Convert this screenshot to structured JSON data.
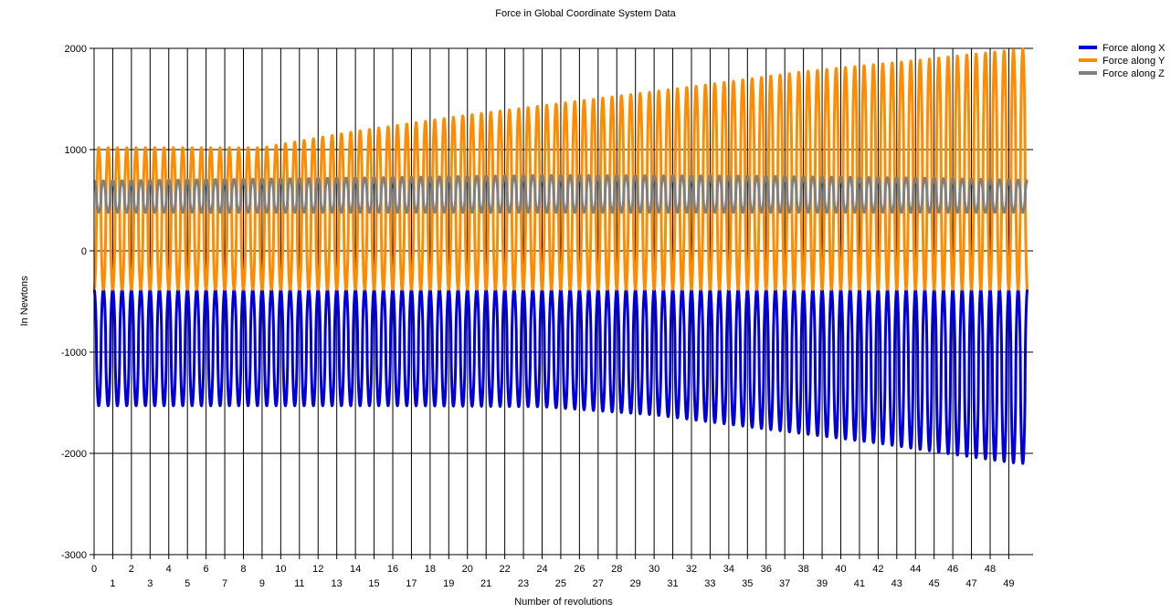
{
  "chart_data": {
    "type": "line",
    "title": "Force in Global Coordinate System Data",
    "xlabel": "Number of revolutions",
    "ylabel": "In Newtons",
    "xlim": [
      0,
      50.3
    ],
    "ylim": [
      -3000,
      2000
    ],
    "yticks": [
      -3000,
      -2000,
      -1000,
      0,
      1000,
      2000
    ],
    "xticks": [
      0,
      1,
      2,
      3,
      4,
      5,
      6,
      7,
      8,
      9,
      10,
      11,
      12,
      13,
      14,
      15,
      16,
      17,
      18,
      19,
      20,
      21,
      22,
      23,
      24,
      25,
      26,
      27,
      28,
      29,
      30,
      31,
      32,
      33,
      34,
      35,
      36,
      37,
      38,
      39,
      40,
      41,
      42,
      43,
      44,
      45,
      46,
      47,
      48,
      49
    ],
    "grid": true,
    "legend_position": "top-right",
    "cycles_per_revolution": 2,
    "series": [
      {
        "name": "Force along X",
        "color": "#0000dd",
        "min_envelope": [
          [
            0,
            -1530
          ],
          [
            17,
            -1530
          ],
          [
            24,
            -1540
          ],
          [
            30,
            -1620
          ],
          [
            36,
            -1760
          ],
          [
            42,
            -1900
          ],
          [
            46,
            -2010
          ],
          [
            49.5,
            -2100
          ]
        ],
        "max_envelope": [
          [
            0,
            -380
          ],
          [
            49.5,
            -380
          ]
        ]
      },
      {
        "name": "Force along Y",
        "color": "#ff8c00",
        "min_envelope": [
          [
            0,
            -380
          ],
          [
            49.5,
            -380
          ]
        ],
        "max_envelope": [
          [
            0,
            1020
          ],
          [
            9,
            1020
          ],
          [
            14,
            1180
          ],
          [
            20,
            1340
          ],
          [
            26,
            1480
          ],
          [
            32,
            1620
          ],
          [
            38,
            1770
          ],
          [
            44,
            1880
          ],
          [
            48,
            1960
          ],
          [
            50,
            2000
          ]
        ]
      },
      {
        "name": "Force along Z",
        "color": "#808080",
        "min_envelope": [
          [
            0,
            380
          ],
          [
            49.5,
            380
          ]
        ],
        "max_envelope": [
          [
            0,
            690
          ],
          [
            14,
            720
          ],
          [
            24,
            745
          ],
          [
            34,
            740
          ],
          [
            44,
            720
          ],
          [
            49.5,
            700
          ]
        ]
      }
    ]
  }
}
